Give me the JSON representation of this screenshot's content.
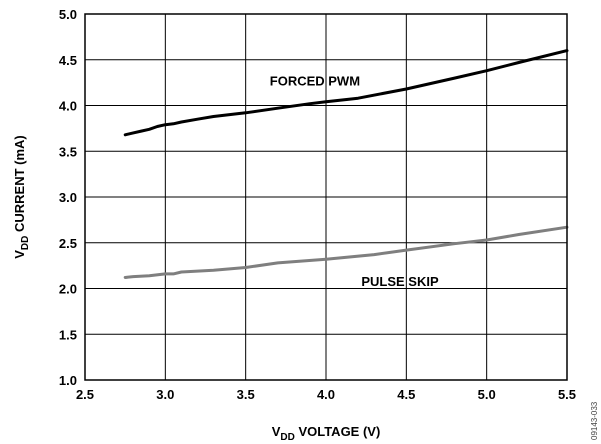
{
  "chart_data": {
    "type": "line",
    "xlabel": {
      "prefix": "V",
      "sub": "DD",
      "rest": " VOLTAGE (V)"
    },
    "ylabel": {
      "prefix": "V",
      "sub": "DD",
      "rest": " CURRENT (mA)"
    },
    "xlim": [
      2.5,
      5.5
    ],
    "ylim": [
      1.0,
      5.0
    ],
    "xticks": [
      "2.5",
      "3.0",
      "3.5",
      "4.0",
      "4.5",
      "5.0",
      "5.5"
    ],
    "yticks": [
      "1.0",
      "1.5",
      "2.0",
      "2.5",
      "3.0",
      "3.5",
      "4.0",
      "4.5",
      "5.0"
    ],
    "grid": true,
    "series": [
      {
        "name": "FORCED PWM",
        "color": "#000000",
        "x": [
          2.75,
          2.8,
          2.85,
          2.9,
          2.95,
          3.0,
          3.05,
          3.1,
          3.2,
          3.3,
          3.5,
          3.7,
          3.9,
          4.0,
          4.2,
          4.5,
          4.8,
          5.0,
          5.2,
          5.5
        ],
        "y": [
          3.68,
          3.7,
          3.72,
          3.74,
          3.77,
          3.79,
          3.8,
          3.82,
          3.85,
          3.88,
          3.92,
          3.97,
          4.02,
          4.04,
          4.08,
          4.18,
          4.3,
          4.38,
          4.47,
          4.6
        ]
      },
      {
        "name": "PULSE SKIP",
        "color": "#7f7f7f",
        "x": [
          2.75,
          2.8,
          2.9,
          3.0,
          3.05,
          3.1,
          3.3,
          3.5,
          3.7,
          4.0,
          4.3,
          4.5,
          4.8,
          5.0,
          5.2,
          5.5
        ],
        "y": [
          2.12,
          2.13,
          2.14,
          2.16,
          2.16,
          2.18,
          2.2,
          2.23,
          2.28,
          2.32,
          2.37,
          2.42,
          2.49,
          2.53,
          2.59,
          2.67
        ]
      }
    ],
    "annotations": [
      {
        "text": "FORCED PWM",
        "x": 3.65,
        "y": 4.22
      },
      {
        "text": "PULSE SKIP",
        "x": 4.22,
        "y": 2.03
      }
    ],
    "figure_id": "09143-033"
  }
}
